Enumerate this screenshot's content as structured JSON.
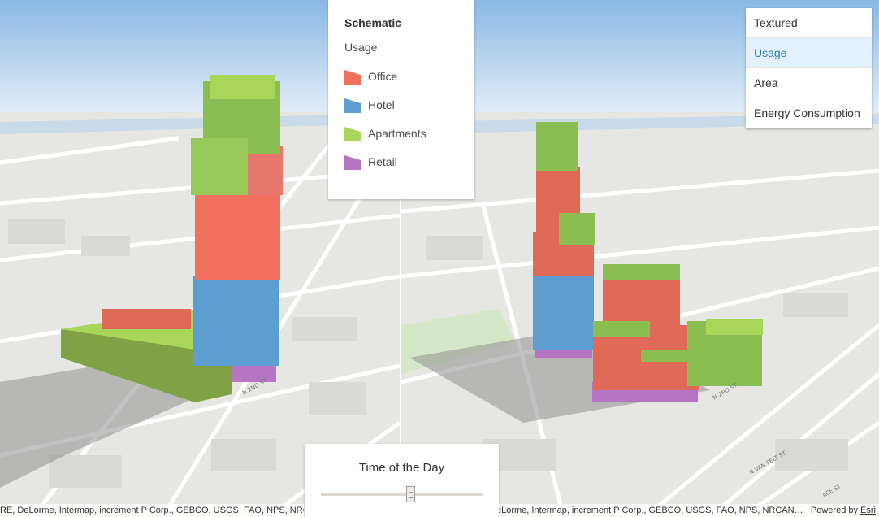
{
  "legend": {
    "title": "Schematic",
    "field": "Usage",
    "items": [
      {
        "label": "Office",
        "color": "#f2705e"
      },
      {
        "label": "Hotel",
        "color": "#5b9ecf"
      },
      {
        "label": "Apartments",
        "color": "#a7d65b"
      },
      {
        "label": "Retail",
        "color": "#b575c4"
      }
    ]
  },
  "view_menu": {
    "selected": "Usage",
    "items": [
      {
        "label": "Textured"
      },
      {
        "label": "Usage"
      },
      {
        "label": "Area"
      },
      {
        "label": "Energy Consumption"
      }
    ]
  },
  "time_of_day": {
    "title": "Time of the Day",
    "value_fraction": 0.55
  },
  "attribution": {
    "left": "RE, DeLorme, Intermap, increment P Corp., GEBCO, USGS, FAO, NPS, NRCAN, GeoBase, IGN",
    "right": "eLorme, Intermap, increment P Corp., GEBCO, USGS, FAO, NPS, NRCAN…",
    "powered_prefix": "Powered by",
    "powered_link": "Esri"
  },
  "street_labels": {
    "left": [
      "N 2ND ST"
    ],
    "right": [
      "N 2ND ST",
      "N VAN PELT ST",
      "ACE ST"
    ]
  },
  "colors": {
    "sky": "#9cc5ea",
    "ground": "#e6e6e3",
    "office": "#f2705e",
    "hotel": "#5b9ecf",
    "apartments": "#a7d65b",
    "retail": "#b575c4",
    "apartments_dark": "#7fa344"
  }
}
